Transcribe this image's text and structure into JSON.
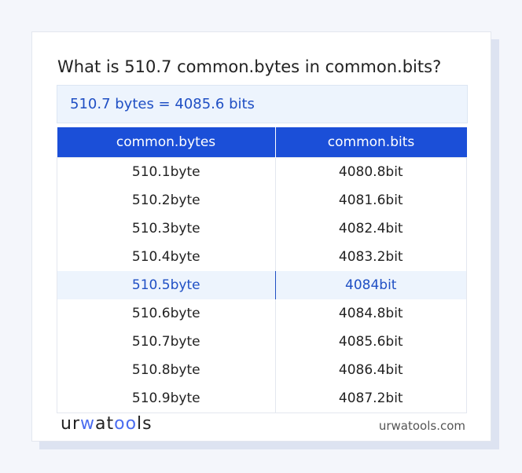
{
  "title": "What is 510.7 common.bytes in common.bits?",
  "result": "510.7 bytes = 4085.6 bits",
  "table": {
    "headers": [
      "common.bytes",
      "common.bits"
    ],
    "rows": [
      [
        "510.1byte",
        "4080.8bit"
      ],
      [
        "510.2byte",
        "4081.6bit"
      ],
      [
        "510.3byte",
        "4082.4bit"
      ],
      [
        "510.4byte",
        "4083.2bit"
      ],
      [
        "510.5byte",
        "4084bit"
      ],
      [
        "510.6byte",
        "4084.8bit"
      ],
      [
        "510.7byte",
        "4085.6bit"
      ],
      [
        "510.8byte",
        "4086.4bit"
      ],
      [
        "510.9byte",
        "4087.2bit"
      ]
    ],
    "highlighted_row": 4
  },
  "footer": {
    "logo": "urwatools",
    "site": "urwatools.com"
  },
  "colors": {
    "accent": "#1b4fd8",
    "highlight_bg": "#edf4fd"
  }
}
